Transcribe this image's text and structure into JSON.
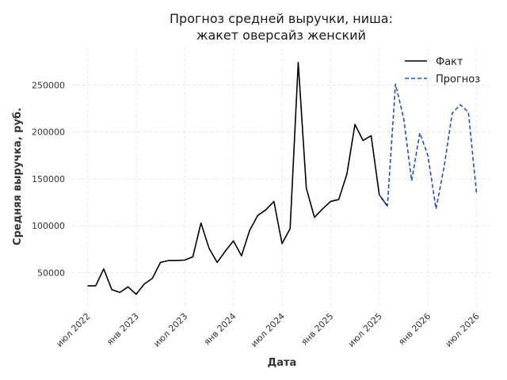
{
  "chart_data": {
    "type": "line",
    "title": [
      "Прогноз средней выручки, ниша:",
      "жакет оверсайз женский"
    ],
    "xlabel": "Дата",
    "ylabel": "Средняя выручка, руб.",
    "ylim": [
      15000,
      290000
    ],
    "xlim": [
      "2022-05",
      "2026-09"
    ],
    "grid": true,
    "legend_position": "top-right",
    "x_ticks": [
      {
        "date": "2022-07",
        "label": "июл 2022"
      },
      {
        "date": "2023-01",
        "label": "янв 2023"
      },
      {
        "date": "2023-07",
        "label": "июл 2023"
      },
      {
        "date": "2024-01",
        "label": "янв 2024"
      },
      {
        "date": "2024-07",
        "label": "июл 2024"
      },
      {
        "date": "2025-01",
        "label": "янв 2025"
      },
      {
        "date": "2025-07",
        "label": "июл 2025"
      },
      {
        "date": "2026-01",
        "label": "янв 2026"
      },
      {
        "date": "2026-07",
        "label": "июл 2026"
      }
    ],
    "y_ticks": [
      {
        "value": 50000,
        "label": "50000"
      },
      {
        "value": 100000,
        "label": "100000"
      },
      {
        "value": 150000,
        "label": "150000"
      },
      {
        "value": 200000,
        "label": "200000"
      },
      {
        "value": 250000,
        "label": "250000"
      }
    ],
    "series": [
      {
        "name": "Факт",
        "color": "#000000",
        "style": "solid",
        "x": [
          "2022-07",
          "2022-08",
          "2022-09",
          "2022-10",
          "2022-11",
          "2022-12",
          "2023-01",
          "2023-02",
          "2023-03",
          "2023-04",
          "2023-05",
          "2023-06",
          "2023-07",
          "2023-08",
          "2023-09",
          "2023-10",
          "2023-11",
          "2023-12",
          "2024-01",
          "2024-02",
          "2024-03",
          "2024-04",
          "2024-05",
          "2024-06",
          "2024-07",
          "2024-08",
          "2024-09",
          "2024-10",
          "2024-11",
          "2024-12",
          "2025-01",
          "2025-02",
          "2025-03",
          "2025-04",
          "2025-05",
          "2025-06",
          "2025-07",
          "2025-08"
        ],
        "values": [
          36000,
          36000,
          54000,
          32000,
          29000,
          35000,
          27000,
          38000,
          44000,
          61000,
          63000,
          63000,
          63500,
          67000,
          103000,
          76000,
          61000,
          73000,
          84000,
          68000,
          95000,
          111000,
          117000,
          126000,
          81000,
          97000,
          274000,
          140000,
          109000,
          118000,
          126000,
          128000,
          155000,
          208000,
          191000,
          196000,
          133000,
          121000
        ]
      },
      {
        "name": "Прогноз",
        "color": "#1f4fd6",
        "style": "dashed",
        "x": [
          "2025-07",
          "2025-08",
          "2025-09",
          "2025-10",
          "2025-11",
          "2025-12",
          "2026-01",
          "2026-02",
          "2026-03",
          "2026-04",
          "2026-05",
          "2026-06",
          "2026-07"
        ],
        "values": [
          133000,
          121000,
          251000,
          215000,
          148000,
          199000,
          175000,
          118000,
          163000,
          220000,
          229000,
          221000,
          135000
        ]
      }
    ]
  }
}
